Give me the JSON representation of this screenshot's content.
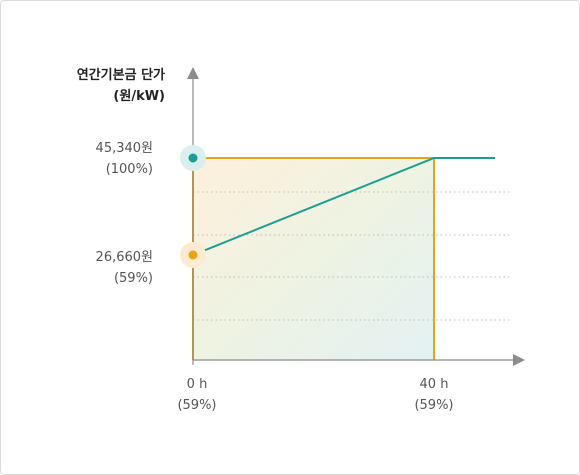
{
  "chart_data": {
    "type": "line",
    "title_lines": [
      "연간기본금 단가",
      "(원/kW)"
    ],
    "y_ticks": [
      {
        "value": 45340,
        "label": "45,340원",
        "sublabel": "(100%)"
      },
      {
        "value": 26660,
        "label": "26,660원",
        "sublabel": "(59%)"
      }
    ],
    "x_ticks": [
      {
        "value": 0,
        "label": "0 h",
        "sublabel": "(59%)"
      },
      {
        "value": 40,
        "label": "40 h",
        "sublabel": "(59%)"
      }
    ],
    "series": [
      {
        "points": [
          {
            "x": 0,
            "y": 26660
          },
          {
            "x": 40,
            "y": 45340
          },
          {
            "x": 50,
            "y": 45340
          }
        ]
      }
    ],
    "highlight_box": {
      "x": [
        0,
        40
      ],
      "y_top": 45340
    },
    "colors": {
      "line": "#1a9e93",
      "box": "#e8a317",
      "axis": "#8c8c8c",
      "point_high": "#1a9e93",
      "point_low": "#e8a317"
    }
  }
}
